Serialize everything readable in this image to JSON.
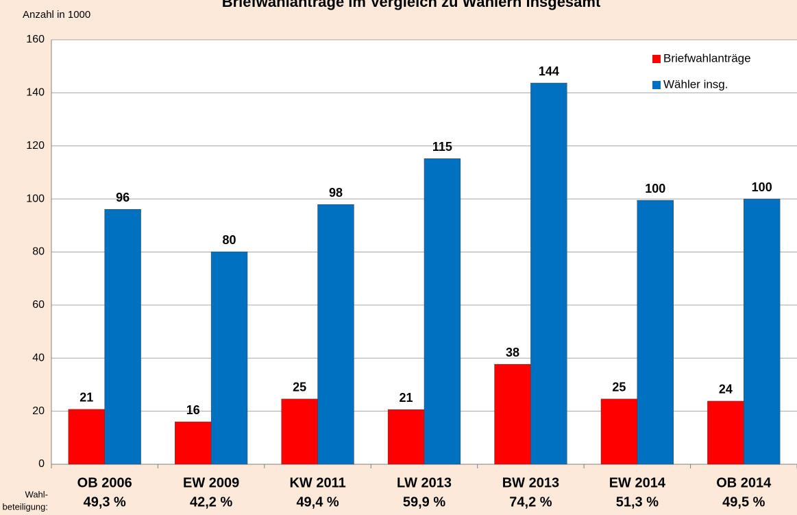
{
  "chart_data": {
    "type": "bar",
    "title": "Briefwahlanträge im Vergleich zu Wählern insgesamt",
    "ylabel": "Anzahl in 1000",
    "categories": [
      "OB 2006",
      "EW 2009",
      "KW 2011",
      "LW 2013",
      "BW 2013",
      "EW 2014",
      "OB 2014"
    ],
    "turnout_title": [
      "Wahl-",
      "beteiligung:"
    ],
    "turnout": [
      "49,3 %",
      "42,2 %",
      "49,4 %",
      "59,9 %",
      "74,2 %",
      "51,3 %",
      "49,5 %"
    ],
    "series": [
      {
        "name": "Briefwahlanträge",
        "color": "#ff0000",
        "values": [
          20.7,
          16.0,
          24.6,
          20.6,
          37.7,
          24.6,
          23.8
        ],
        "value_labels": [
          "21",
          "16",
          "25",
          "21",
          "38",
          "25",
          "24"
        ]
      },
      {
        "name": "Wähler insg.",
        "color": "#0070c0",
        "values": [
          96.1,
          80.1,
          97.9,
          115.2,
          143.7,
          99.5,
          100.0
        ],
        "value_labels": [
          "96",
          "80",
          "98",
          "115",
          "144",
          "100",
          "100"
        ]
      }
    ],
    "ylim": [
      0,
      160
    ],
    "yticks": [
      0,
      20,
      40,
      60,
      80,
      100,
      120,
      140,
      160
    ],
    "grid": true,
    "legend": "upper right"
  }
}
